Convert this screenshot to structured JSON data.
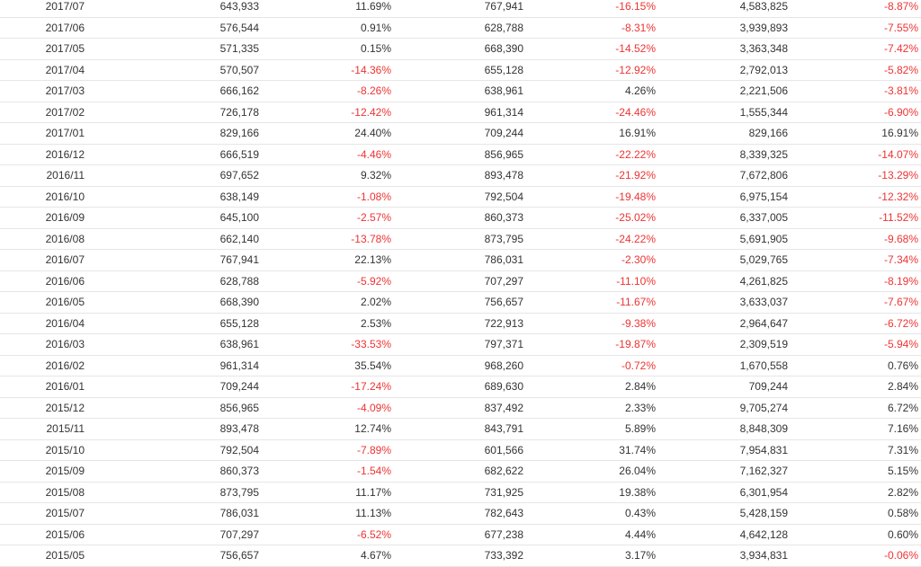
{
  "colors": {
    "negative": "#ee3333",
    "text": "#333333"
  },
  "rows": [
    {
      "month": "2017/07",
      "v1": "643,933",
      "p1": "11.69%",
      "v2": "767,941",
      "p2": "-16.15%",
      "v3": "4,583,825",
      "p3": "-8.87%"
    },
    {
      "month": "2017/06",
      "v1": "576,544",
      "p1": "0.91%",
      "v2": "628,788",
      "p2": "-8.31%",
      "v3": "3,939,893",
      "p3": "-7.55%"
    },
    {
      "month": "2017/05",
      "v1": "571,335",
      "p1": "0.15%",
      "v2": "668,390",
      "p2": "-14.52%",
      "v3": "3,363,348",
      "p3": "-7.42%"
    },
    {
      "month": "2017/04",
      "v1": "570,507",
      "p1": "-14.36%",
      "v2": "655,128",
      "p2": "-12.92%",
      "v3": "2,792,013",
      "p3": "-5.82%"
    },
    {
      "month": "2017/03",
      "v1": "666,162",
      "p1": "-8.26%",
      "v2": "638,961",
      "p2": "4.26%",
      "v3": "2,221,506",
      "p3": "-3.81%"
    },
    {
      "month": "2017/02",
      "v1": "726,178",
      "p1": "-12.42%",
      "v2": "961,314",
      "p2": "-24.46%",
      "v3": "1,555,344",
      "p3": "-6.90%"
    },
    {
      "month": "2017/01",
      "v1": "829,166",
      "p1": "24.40%",
      "v2": "709,244",
      "p2": "16.91%",
      "v3": "829,166",
      "p3": "16.91%"
    },
    {
      "month": "2016/12",
      "v1": "666,519",
      "p1": "-4.46%",
      "v2": "856,965",
      "p2": "-22.22%",
      "v3": "8,339,325",
      "p3": "-14.07%"
    },
    {
      "month": "2016/11",
      "v1": "697,652",
      "p1": "9.32%",
      "v2": "893,478",
      "p2": "-21.92%",
      "v3": "7,672,806",
      "p3": "-13.29%"
    },
    {
      "month": "2016/10",
      "v1": "638,149",
      "p1": "-1.08%",
      "v2": "792,504",
      "p2": "-19.48%",
      "v3": "6,975,154",
      "p3": "-12.32%"
    },
    {
      "month": "2016/09",
      "v1": "645,100",
      "p1": "-2.57%",
      "v2": "860,373",
      "p2": "-25.02%",
      "v3": "6,337,005",
      "p3": "-11.52%"
    },
    {
      "month": "2016/08",
      "v1": "662,140",
      "p1": "-13.78%",
      "v2": "873,795",
      "p2": "-24.22%",
      "v3": "5,691,905",
      "p3": "-9.68%"
    },
    {
      "month": "2016/07",
      "v1": "767,941",
      "p1": "22.13%",
      "v2": "786,031",
      "p2": "-2.30%",
      "v3": "5,029,765",
      "p3": "-7.34%"
    },
    {
      "month": "2016/06",
      "v1": "628,788",
      "p1": "-5.92%",
      "v2": "707,297",
      "p2": "-11.10%",
      "v3": "4,261,825",
      "p3": "-8.19%"
    },
    {
      "month": "2016/05",
      "v1": "668,390",
      "p1": "2.02%",
      "v2": "756,657",
      "p2": "-11.67%",
      "v3": "3,633,037",
      "p3": "-7.67%"
    },
    {
      "month": "2016/04",
      "v1": "655,128",
      "p1": "2.53%",
      "v2": "722,913",
      "p2": "-9.38%",
      "v3": "2,964,647",
      "p3": "-6.72%"
    },
    {
      "month": "2016/03",
      "v1": "638,961",
      "p1": "-33.53%",
      "v2": "797,371",
      "p2": "-19.87%",
      "v3": "2,309,519",
      "p3": "-5.94%"
    },
    {
      "month": "2016/02",
      "v1": "961,314",
      "p1": "35.54%",
      "v2": "968,260",
      "p2": "-0.72%",
      "v3": "1,670,558",
      "p3": "0.76%"
    },
    {
      "month": "2016/01",
      "v1": "709,244",
      "p1": "-17.24%",
      "v2": "689,630",
      "p2": "2.84%",
      "v3": "709,244",
      "p3": "2.84%"
    },
    {
      "month": "2015/12",
      "v1": "856,965",
      "p1": "-4.09%",
      "v2": "837,492",
      "p2": "2.33%",
      "v3": "9,705,274",
      "p3": "6.72%"
    },
    {
      "month": "2015/11",
      "v1": "893,478",
      "p1": "12.74%",
      "v2": "843,791",
      "p2": "5.89%",
      "v3": "8,848,309",
      "p3": "7.16%"
    },
    {
      "month": "2015/10",
      "v1": "792,504",
      "p1": "-7.89%",
      "v2": "601,566",
      "p2": "31.74%",
      "v3": "7,954,831",
      "p3": "7.31%"
    },
    {
      "month": "2015/09",
      "v1": "860,373",
      "p1": "-1.54%",
      "v2": "682,622",
      "p2": "26.04%",
      "v3": "7,162,327",
      "p3": "5.15%"
    },
    {
      "month": "2015/08",
      "v1": "873,795",
      "p1": "11.17%",
      "v2": "731,925",
      "p2": "19.38%",
      "v3": "6,301,954",
      "p3": "2.82%"
    },
    {
      "month": "2015/07",
      "v1": "786,031",
      "p1": "11.13%",
      "v2": "782,643",
      "p2": "0.43%",
      "v3": "5,428,159",
      "p3": "0.58%"
    },
    {
      "month": "2015/06",
      "v1": "707,297",
      "p1": "-6.52%",
      "v2": "677,238",
      "p2": "4.44%",
      "v3": "4,642,128",
      "p3": "0.60%"
    },
    {
      "month": "2015/05",
      "v1": "756,657",
      "p1": "4.67%",
      "v2": "733,392",
      "p2": "3.17%",
      "v3": "3,934,831",
      "p3": "-0.06%"
    }
  ]
}
